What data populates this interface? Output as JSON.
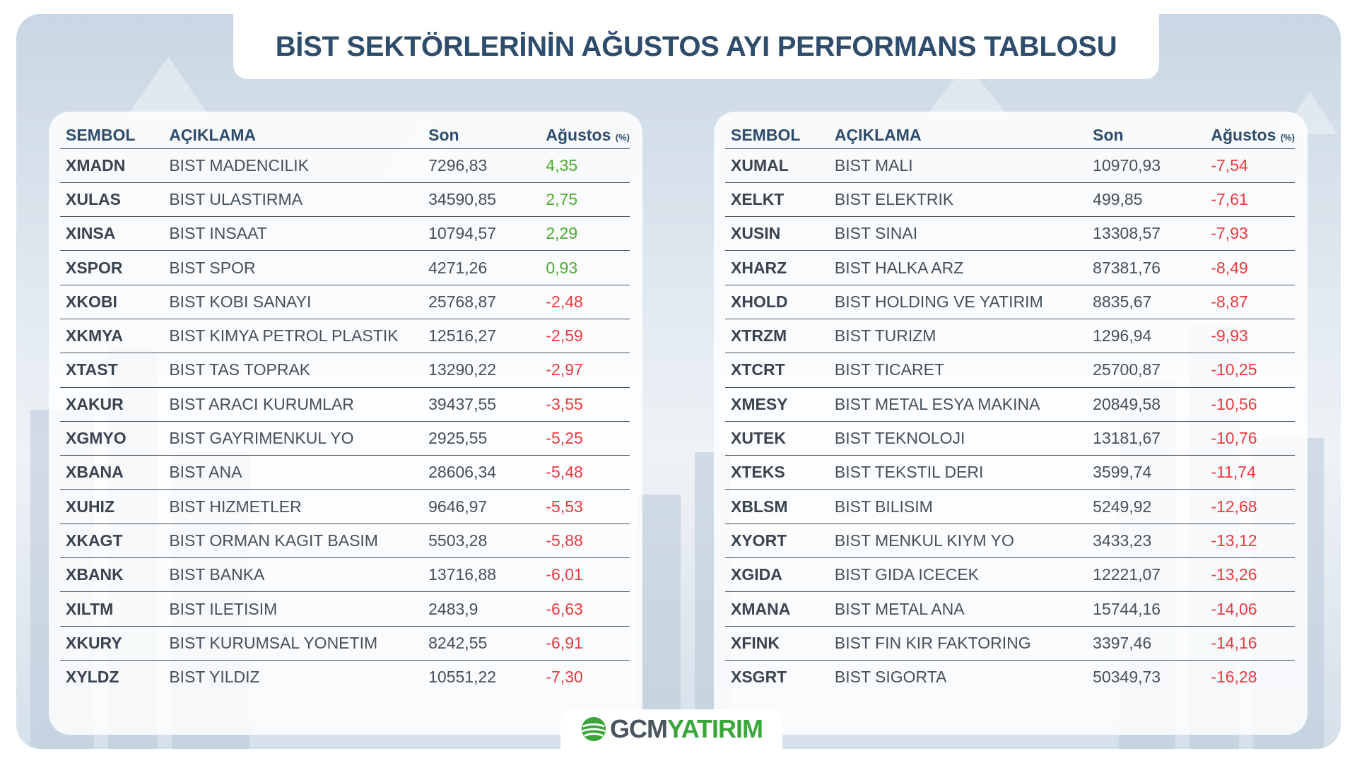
{
  "title": "BİST SEKTÖRLERİNİN AĞUSTOS AYI PERFORMANS TABLOSU",
  "headers": {
    "symbol": "SEMBOL",
    "description": "AÇIKLAMA",
    "last": "Son",
    "change": "Ağustos",
    "change_unit": "(%)"
  },
  "colors": {
    "positive": "#4caa2e",
    "negative": "#e83a3f",
    "title": "#2e4c6b"
  },
  "left_table": [
    {
      "symbol": "XMADN",
      "description": "BIST MADENCILIK",
      "last": "7296,83",
      "change": "4,35",
      "trend": "pos"
    },
    {
      "symbol": "XULAS",
      "description": "BIST ULASTIRMA",
      "last": "34590,85",
      "change": "2,75",
      "trend": "pos"
    },
    {
      "symbol": "XINSA",
      "description": "BIST INSAAT",
      "last": "10794,57",
      "change": "2,29",
      "trend": "pos"
    },
    {
      "symbol": "XSPOR",
      "description": "BIST SPOR",
      "last": "4271,26",
      "change": "0,93",
      "trend": "pos"
    },
    {
      "symbol": "XKOBI",
      "description": "BIST KOBI SANAYI",
      "last": "25768,87",
      "change": "-2,48",
      "trend": "neg"
    },
    {
      "symbol": "XKMYA",
      "description": "BIST KIMYA PETROL PLASTIK",
      "last": "12516,27",
      "change": "-2,59",
      "trend": "neg"
    },
    {
      "symbol": "XTAST",
      "description": "BIST TAS TOPRAK",
      "last": "13290,22",
      "change": "-2,97",
      "trend": "neg"
    },
    {
      "symbol": "XAKUR",
      "description": "BIST ARACI KURUMLAR",
      "last": "39437,55",
      "change": "-3,55",
      "trend": "neg"
    },
    {
      "symbol": "XGMYO",
      "description": "BIST GAYRIMENKUL YO",
      "last": "2925,55",
      "change": "-5,25",
      "trend": "neg"
    },
    {
      "symbol": "XBANA",
      "description": "BIST ANA",
      "last": "28606,34",
      "change": "-5,48",
      "trend": "neg"
    },
    {
      "symbol": "XUHIZ",
      "description": "BIST HIZMETLER",
      "last": "9646,97",
      "change": "-5,53",
      "trend": "neg"
    },
    {
      "symbol": "XKAGT",
      "description": "BIST ORMAN KAGIT BASIM",
      "last": "5503,28",
      "change": "-5,88",
      "trend": "neg"
    },
    {
      "symbol": "XBANK",
      "description": "BIST BANKA",
      "last": "13716,88",
      "change": "-6,01",
      "trend": "neg"
    },
    {
      "symbol": "XILTM",
      "description": "BIST ILETISIM",
      "last": "2483,9",
      "change": "-6,63",
      "trend": "neg"
    },
    {
      "symbol": "XKURY",
      "description": "BIST KURUMSAL YONETIM",
      "last": "8242,55",
      "change": "-6,91",
      "trend": "neg"
    },
    {
      "symbol": "XYLDZ",
      "description": "BIST YILDIZ",
      "last": "10551,22",
      "change": "-7,30",
      "trend": "neg"
    }
  ],
  "right_table": [
    {
      "symbol": "XUMAL",
      "description": "BIST MALI",
      "last": "10970,93",
      "change": "-7,54",
      "trend": "neg"
    },
    {
      "symbol": "XELKT",
      "description": "BIST ELEKTRIK",
      "last": "499,85",
      "change": "-7,61",
      "trend": "neg"
    },
    {
      "symbol": "XUSIN",
      "description": "BIST SINAI",
      "last": "13308,57",
      "change": "-7,93",
      "trend": "neg"
    },
    {
      "symbol": "XHARZ",
      "description": "BIST HALKA ARZ",
      "last": "87381,76",
      "change": "-8,49",
      "trend": "neg"
    },
    {
      "symbol": "XHOLD",
      "description": "BIST HOLDING VE YATIRIM",
      "last": "8835,67",
      "change": "-8,87",
      "trend": "neg"
    },
    {
      "symbol": "XTRZM",
      "description": "BIST TURIZM",
      "last": "1296,94",
      "change": "-9,93",
      "trend": "neg"
    },
    {
      "symbol": "XTCRT",
      "description": "BIST TICARET",
      "last": "25700,87",
      "change": "-10,25",
      "trend": "neg"
    },
    {
      "symbol": "XMESY",
      "description": "BIST METAL ESYA MAKINA",
      "last": "20849,58",
      "change": "-10,56",
      "trend": "neg"
    },
    {
      "symbol": "XUTEK",
      "description": "BIST TEKNOLOJI",
      "last": "13181,67",
      "change": "-10,76",
      "trend": "neg"
    },
    {
      "symbol": "XTEKS",
      "description": "BIST TEKSTIL DERI",
      "last": "3599,74",
      "change": "-11,74",
      "trend": "neg"
    },
    {
      "symbol": "XBLSM",
      "description": "BIST BILISIM",
      "last": "5249,92",
      "change": "-12,68",
      "trend": "neg"
    },
    {
      "symbol": "XYORT",
      "description": "BIST MENKUL KIYM YO",
      "last": "3433,23",
      "change": "-13,12",
      "trend": "neg"
    },
    {
      "symbol": "XGIDA",
      "description": "BIST GIDA ICECEK",
      "last": "12221,07",
      "change": "-13,26",
      "trend": "neg"
    },
    {
      "symbol": "XMANA",
      "description": "BIST METAL ANA",
      "last": "15744,16",
      "change": "-14,06",
      "trend": "neg"
    },
    {
      "symbol": "XFINK",
      "description": "BIST FIN KIR FAKTORING",
      "last": "3397,46",
      "change": "-14,16",
      "trend": "neg"
    },
    {
      "symbol": "XSGRT",
      "description": "BIST SIGORTA",
      "last": "50349,73",
      "change": "-16,28",
      "trend": "neg"
    }
  ],
  "logo": {
    "part1": "GCM",
    "part2": "YATIRIM"
  }
}
